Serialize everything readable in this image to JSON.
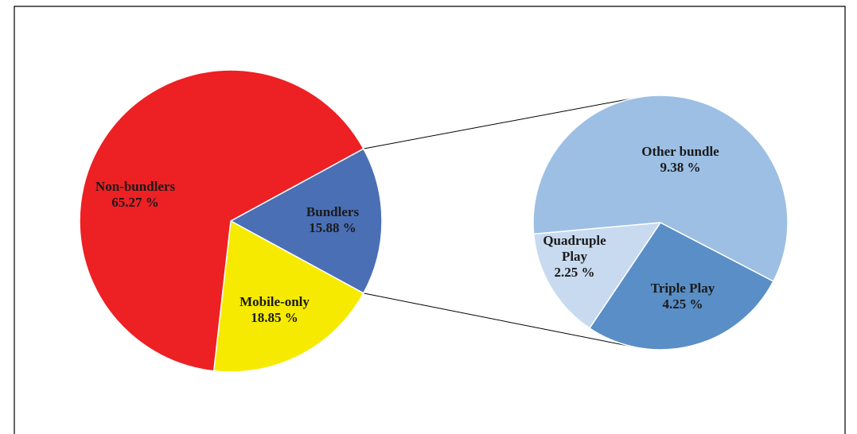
{
  "chart_data": [
    {
      "type": "pie",
      "categories": [
        "Bundlers",
        "Mobile-only",
        "Non-bundlers"
      ],
      "values": [
        15.88,
        18.85,
        65.27
      ],
      "value_labels": [
        "15.88 %",
        "18.85 %",
        "65.27 %"
      ],
      "colors": [
        "#4a6fb5",
        "#f6eb00",
        "#ed2024"
      ]
    },
    {
      "type": "pie",
      "categories": [
        "Triple Play",
        "Quadruple Play",
        "Other bundle"
      ],
      "values": [
        4.25,
        2.25,
        9.38
      ],
      "value_labels": [
        "4.25 %",
        "2.25 %",
        "9.38 %"
      ],
      "colors": [
        "#5a8ec6",
        "#c8daf0",
        "#9dbfe4"
      ]
    }
  ]
}
